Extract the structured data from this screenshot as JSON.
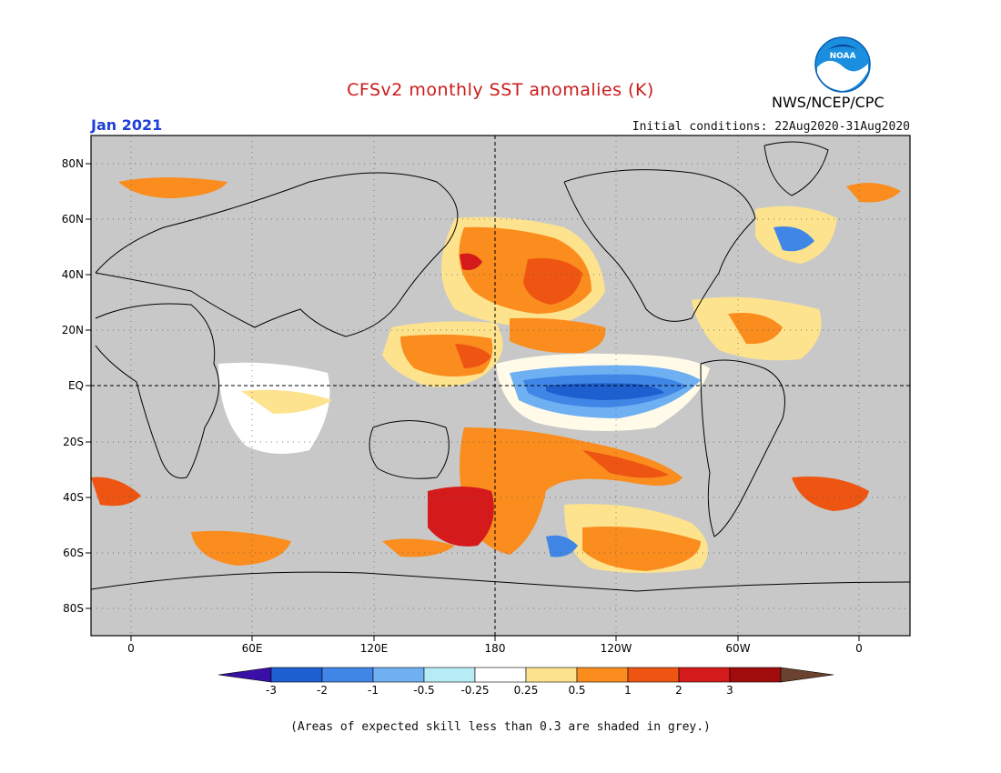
{
  "header": {
    "title": "CFSv2 monthly SST anomalies (K)",
    "valid_date": "Jan 2021",
    "initial_conditions": "Initial conditions: 22Aug2020-31Aug2020",
    "agency": "NWS/NCEP/CPC",
    "logo_text": "NOAA"
  },
  "map": {
    "lat_labels": [
      "80N",
      "60N",
      "40N",
      "20N",
      "EQ",
      "20S",
      "40S",
      "60S",
      "80S"
    ],
    "lon_labels": [
      "0",
      "60E",
      "120E",
      "180",
      "120W",
      "60W",
      "0"
    ],
    "background_color": "#c8c8c8"
  },
  "colorbar": {
    "tick_labels": [
      "-3",
      "-2",
      "-1",
      "-0.5",
      "-0.25",
      "0.25",
      "0.5",
      "1",
      "2",
      "3"
    ],
    "colors": [
      "#3a0fa8",
      "#1e5fd0",
      "#3f86e6",
      "#6fb0f2",
      "#b8ecf4",
      "#ffffff",
      "#fde38e",
      "#fb8c1e",
      "#ee5512",
      "#d41a1a",
      "#a00c0c",
      "#6b4230"
    ]
  },
  "footnote": "(Areas of expected skill less than 0.3 are shaded in grey.)"
}
